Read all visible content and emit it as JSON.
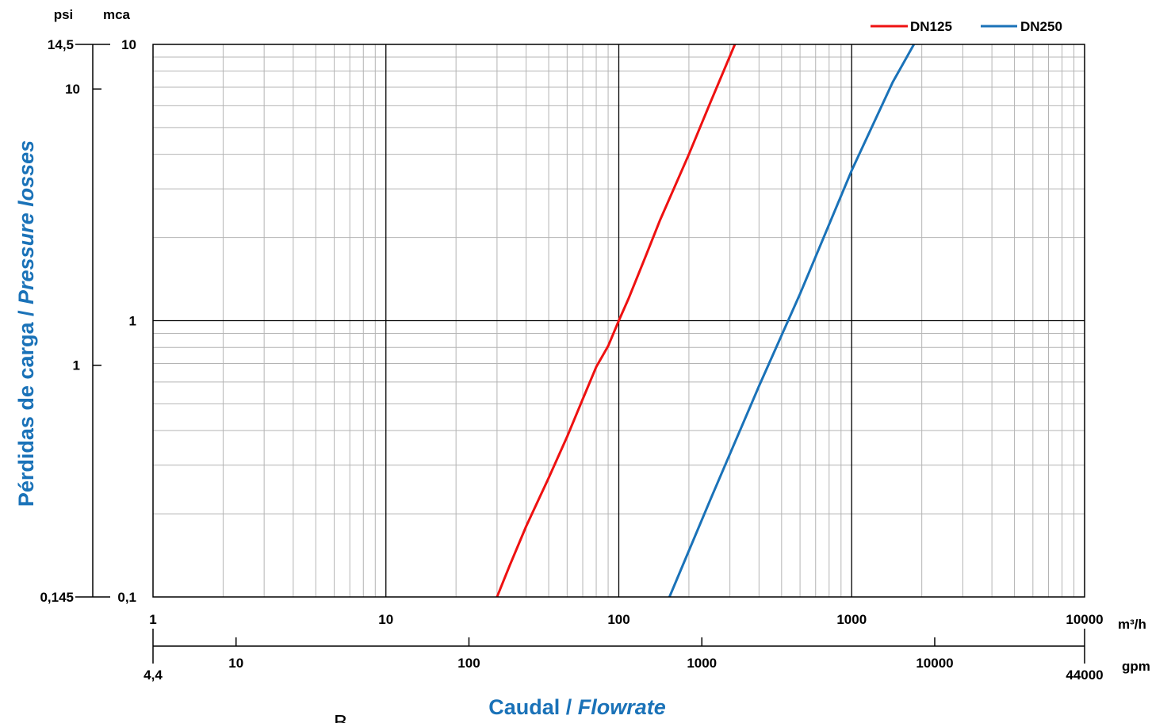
{
  "chart_data": {
    "type": "line",
    "x_scale": "log",
    "y_scale": "log",
    "xlim": [
      1,
      10000
    ],
    "ylim": [
      0.1,
      10
    ],
    "grid": true,
    "legend_position": "top-right",
    "x_label_es": "Caudal",
    "x_label_sep": " / ",
    "x_label_en": "Flowrate",
    "y_label_es": "Pérdidas de carga",
    "y_label_sep": " / ",
    "y_label_en": "Pressure losses",
    "x_unit_primary": "m³/h",
    "x_unit_secondary": "gpm",
    "y_unit_primary": "mca",
    "y_unit_secondary": "psi",
    "x_ticks_primary": [
      "1",
      "10",
      "100",
      "1000",
      "10000"
    ],
    "x_ticks_secondary": [
      "4,4",
      "10",
      "100",
      "1000",
      "10000",
      "44000"
    ],
    "y_ticks_primary": [
      "0,1",
      "1",
      "10"
    ],
    "y_ticks_secondary": [
      "0,145",
      "1",
      "10",
      "14,5"
    ],
    "stray_text": "B",
    "series": [
      {
        "name": "DN125",
        "color": "#ee1111",
        "x": [
          30,
          34,
          40,
          50,
          60,
          70,
          80,
          90,
          100,
          110,
          130,
          150,
          200,
          250,
          315
        ],
        "y": [
          0.1,
          0.13,
          0.18,
          0.27,
          0.38,
          0.52,
          0.68,
          0.81,
          1.0,
          1.2,
          1.7,
          2.3,
          4.0,
          6.3,
          10
        ]
      },
      {
        "name": "DN250",
        "color": "#1a72b8",
        "x": [
          165,
          250,
          400,
          600,
          1000,
          1500,
          1850
        ],
        "y": [
          0.1,
          0.23,
          0.58,
          1.25,
          3.5,
          7.3,
          10
        ]
      }
    ]
  },
  "colors": {
    "title_blue": "#1a72b8",
    "grid_minor": "#b4b4b4",
    "grid_major": "#000000"
  }
}
